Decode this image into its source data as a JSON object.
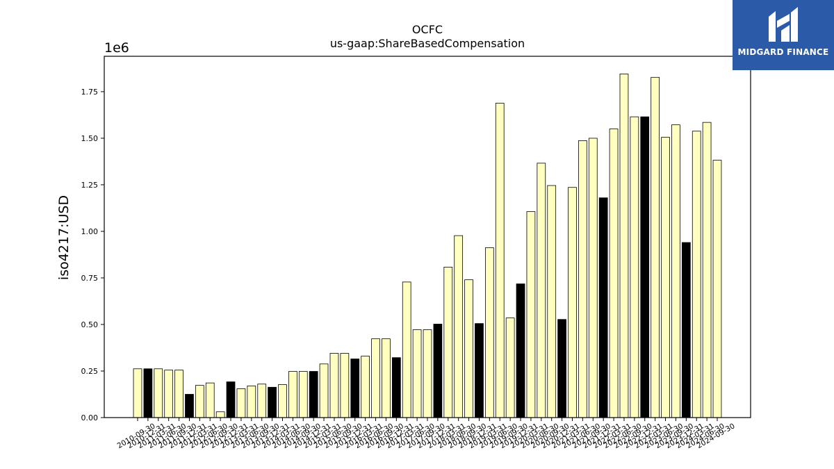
{
  "chart_data": {
    "type": "bar",
    "title": "OCFC",
    "subtitle": "us-gaap:ShareBasedCompensation",
    "ylabel": "iso4217:USD",
    "xlabel": "",
    "y_multiplier_label": "1e6",
    "ylim": [
      0,
      1.94
    ],
    "yticks": [
      "0.00",
      "0.25",
      "0.50",
      "0.75",
      "1.00",
      "1.25",
      "1.50",
      "1.75"
    ],
    "grid": false,
    "legend": "none",
    "colors": {
      "regular": "#ffffc0",
      "highlight": "#000000",
      "edge": "#000000"
    },
    "categories": [
      "2010-09-30",
      "2010-12-31",
      "2011-03-31",
      "2011-06-30",
      "2011-09-30",
      "2011-12-31",
      "2012-03-31",
      "2012-06-30",
      "2012-09-30",
      "2012-12-31",
      "2013-03-31",
      "2013-06-30",
      "2013-09-30",
      "2013-12-31",
      "2014-03-31",
      "2014-06-30",
      "2014-09-30",
      "2014-12-31",
      "2015-03-31",
      "2015-06-30",
      "2015-09-30",
      "2015-12-31",
      "2016-03-31",
      "2016-06-30",
      "2016-09-30",
      "2016-12-31",
      "2017-03-31",
      "2017-06-30",
      "2017-09-30",
      "2017-12-31",
      "2018-03-31",
      "2018-06-30",
      "2018-09-30",
      "2018-12-31",
      "2019-03-31",
      "2019-06-30",
      "2019-09-30",
      "2019-12-31",
      "2020-03-31",
      "2020-06-30",
      "2020-09-30",
      "2020-12-31",
      "2021-03-31",
      "2021-06-30",
      "2021-09-30",
      "2021-12-31",
      "2022-03-31",
      "2022-06-30",
      "2022-09-30",
      "2022-12-31",
      "2023-03-31",
      "2023-06-30",
      "2023-09-30",
      "2023-12-31",
      "2024-03-31",
      "2024-06-30",
      "2024-09-30"
    ],
    "values": [
      0.262,
      0.262,
      0.262,
      0.255,
      0.255,
      0.125,
      0.173,
      0.186,
      0.031,
      0.192,
      0.155,
      0.17,
      0.18,
      0.163,
      0.177,
      0.248,
      0.248,
      0.248,
      0.288,
      0.345,
      0.345,
      0.315,
      0.33,
      0.423,
      0.423,
      0.322,
      0.728,
      0.472,
      0.472,
      0.502,
      0.808,
      0.977,
      0.74,
      0.505,
      0.912,
      1.688,
      0.535,
      0.718,
      1.106,
      1.366,
      1.246,
      0.527,
      1.236,
      1.487,
      1.5,
      1.18,
      1.55,
      1.845,
      1.615,
      1.615,
      1.827,
      1.505,
      1.572,
      0.94,
      1.538,
      1.585,
      1.382
    ],
    "highlight": [
      false,
      true,
      false,
      false,
      false,
      true,
      false,
      false,
      false,
      true,
      false,
      false,
      false,
      true,
      false,
      false,
      false,
      true,
      false,
      false,
      false,
      true,
      false,
      false,
      false,
      true,
      false,
      false,
      false,
      true,
      false,
      false,
      false,
      true,
      false,
      false,
      false,
      true,
      false,
      false,
      false,
      true,
      false,
      false,
      false,
      true,
      false,
      false,
      false,
      true,
      false,
      false,
      false,
      true,
      false,
      false,
      false
    ]
  },
  "logo": {
    "text": "MIDGARD FINANCE"
  }
}
